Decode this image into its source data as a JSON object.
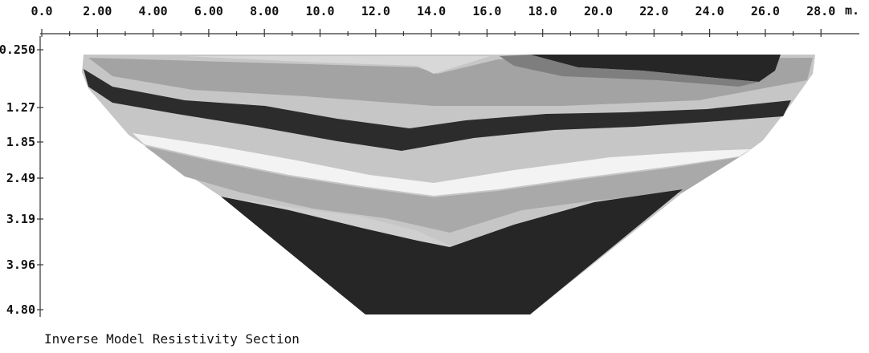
{
  "title": "Inverse Model Resistivity Section",
  "x_axis": {
    "unit": "m.",
    "ticks": [
      "0.0",
      "2.00",
      "4.00",
      "6.00",
      "8.00",
      "10.0",
      "12.0",
      "14.0",
      "16.0",
      "18.0",
      "20.0",
      "22.0",
      "24.0",
      "26.0",
      "28.0"
    ]
  },
  "depth_axis": {
    "ticks": [
      "0.250",
      "1.27",
      "1.85",
      "2.49",
      "3.19",
      "3.96",
      "4.80"
    ]
  },
  "colors": {
    "background": "#ffffff",
    "layer_light": "#c8c8c8",
    "layer_mid": "#9e9e9e",
    "layer_dark": "#2a2a2a",
    "layer_white": "#f4f4f4",
    "layer_pale": "#dadada"
  }
}
